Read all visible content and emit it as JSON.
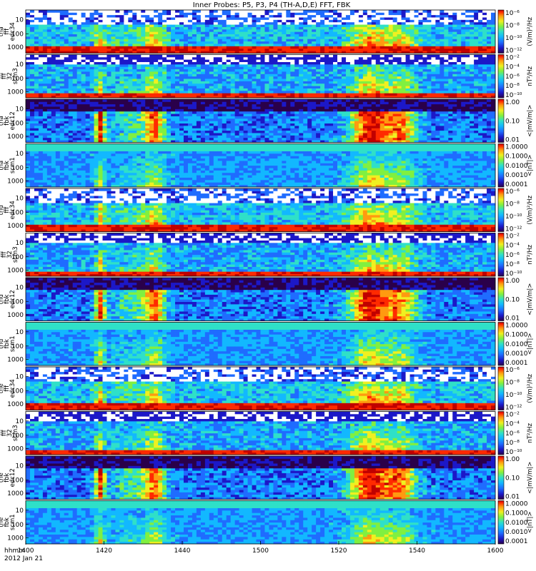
{
  "chart_data": {
    "type": "heatmap",
    "title": "Inner Probes: P5, P3, P4 (TH-A,D,E) FFT, FBK",
    "x": {
      "label": "hhmm",
      "date_label": "2012 Jan 21",
      "ticks": [
        "1400",
        "1420",
        "1440",
        "1500",
        "1520",
        "1540",
        "1600"
      ],
      "range_minutes": [
        0,
        120
      ]
    },
    "panels": [
      {
        "label": [
          "tha",
          "fff",
          "edc34"
        ],
        "kind": "fff_e",
        "y_ticks": [
          "1000",
          "100",
          "10"
        ],
        "cb_label": "(V/m)^2/Hz",
        "cb_ticks": [
          "10^-6",
          "10^-8",
          "10^-10",
          "10^-12"
        ]
      },
      {
        "label": [
          "tha",
          "fff",
          "32",
          "scm3"
        ],
        "kind": "fff_b",
        "y_ticks": [
          "1000",
          "100",
          "10"
        ],
        "cb_label": "nT^2/Hz",
        "cb_ticks": [
          "10^-2",
          "10^-4",
          "10^-6",
          "10^-8",
          "10^-10"
        ]
      },
      {
        "label": [
          "tha",
          "fbk",
          "edc12"
        ],
        "kind": "fbk_e",
        "y_ticks": [
          "1000",
          "100",
          "10"
        ],
        "cb_label": "<|mV/m|>",
        "cb_ticks": [
          "1.00",
          "0.10",
          "0.01"
        ]
      },
      {
        "label": [
          "tha",
          "fbk",
          "scm1"
        ],
        "kind": "fbk_b",
        "y_ticks": [
          "1000",
          "100",
          "10"
        ],
        "cb_label": "<|nT|>",
        "cb_ticks": [
          "1.0000",
          "0.1000",
          "0.0100",
          "0.0010",
          "0.0001"
        ]
      },
      {
        "label": [
          "thd",
          "fff",
          "edc34"
        ],
        "kind": "fff_e",
        "y_ticks": [
          "1000",
          "100",
          "10"
        ],
        "cb_label": "(V/m)^2/Hz",
        "cb_ticks": [
          "10^-6",
          "10^-8",
          "10^-10",
          "10^-12"
        ]
      },
      {
        "label": [
          "thd",
          "fff",
          "32",
          "scm3"
        ],
        "kind": "fff_b",
        "y_ticks": [
          "1000",
          "100",
          "10"
        ],
        "cb_label": "nT^2/Hz",
        "cb_ticks": [
          "10^-2",
          "10^-4",
          "10^-6",
          "10^-8",
          "10^-10"
        ]
      },
      {
        "label": [
          "thd",
          "fbk",
          "edc12"
        ],
        "kind": "fbk_e",
        "y_ticks": [
          "1000",
          "100",
          "10"
        ],
        "cb_label": "<|mV/m|>",
        "cb_ticks": [
          "1.00",
          "0.10",
          "0.01"
        ]
      },
      {
        "label": [
          "thd",
          "fbk",
          "scm1"
        ],
        "kind": "fbk_b",
        "y_ticks": [
          "1000",
          "100",
          "10"
        ],
        "cb_label": "<|nT|>",
        "cb_ticks": [
          "1.0000",
          "0.1000",
          "0.0100",
          "0.0010",
          "0.0001"
        ]
      },
      {
        "label": [
          "the",
          "fff",
          "edc34"
        ],
        "kind": "fff_e",
        "y_ticks": [
          "1000",
          "100",
          "10"
        ],
        "cb_label": "(V/m)^2/Hz",
        "cb_ticks": [
          "10^-6",
          "10^-8",
          "10^-10",
          "10^-12"
        ]
      },
      {
        "label": [
          "the",
          "fff",
          "32",
          "scm3"
        ],
        "kind": "fff_b",
        "y_ticks": [
          "1000",
          "100",
          "10"
        ],
        "cb_label": "nT^2/Hz",
        "cb_ticks": [
          "10^-2",
          "10^-4",
          "10^-6",
          "10^-8",
          "10^-10"
        ]
      },
      {
        "label": [
          "the",
          "fbk",
          "edc12"
        ],
        "kind": "fbk_e",
        "y_ticks": [
          "1000",
          "100",
          "10"
        ],
        "cb_label": "<|mV/m|>",
        "cb_ticks": [
          "1.00",
          "0.10",
          "0.01"
        ]
      },
      {
        "label": [
          "the",
          "fbk",
          "scm1"
        ],
        "kind": "fbk_b",
        "y_ticks": [
          "1000",
          "100",
          "10"
        ],
        "cb_label": "<|nT|>",
        "cb_ticks": [
          "1.0000",
          "0.1000",
          "0.0100",
          "0.0010",
          "0.0001"
        ]
      }
    ],
    "colormap": [
      "#2a004a",
      "#1c18c8",
      "#1f6cff",
      "#12b8ff",
      "#2fe0c8",
      "#80f040",
      "#f0f020",
      "#ff9a10",
      "#ff2a00",
      "#c00000"
    ]
  }
}
